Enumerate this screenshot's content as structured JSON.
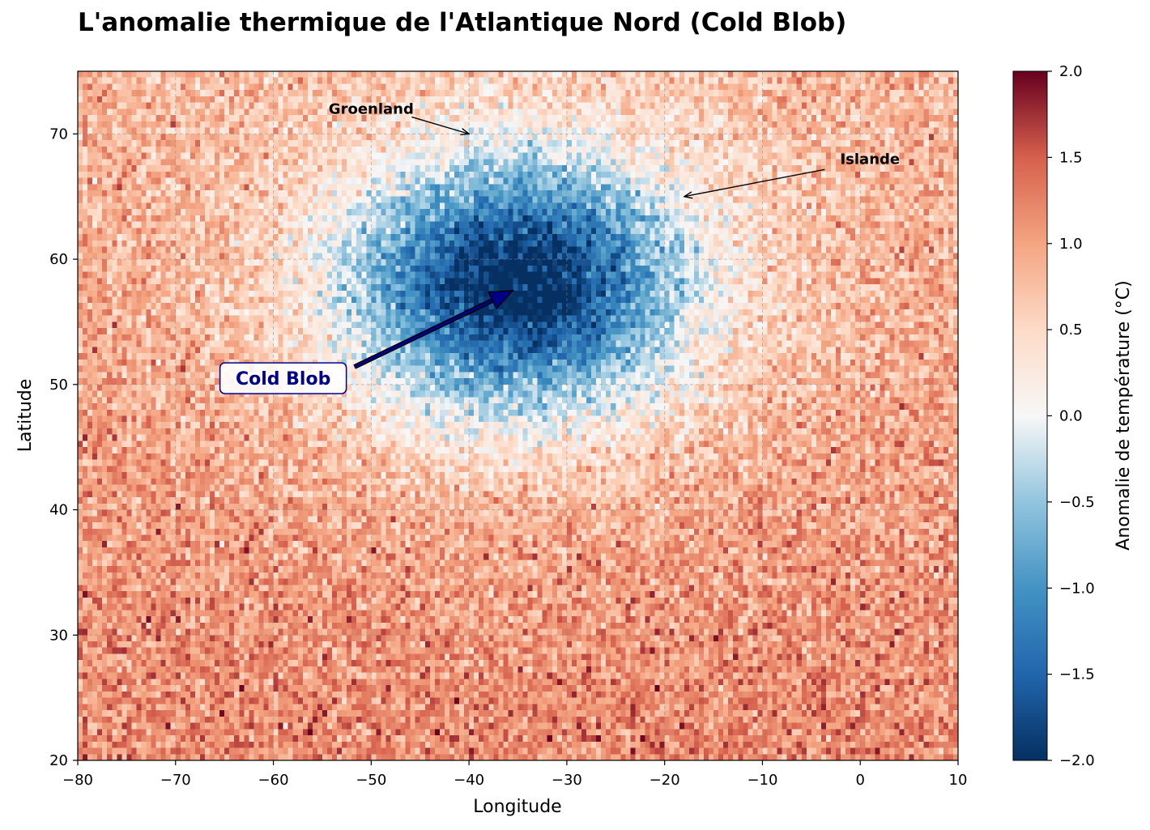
{
  "chart_data": {
    "type": "heatmap",
    "title": "L'anomalie thermique de l'Atlantique Nord (Cold Blob)",
    "xlabel": "Longitude",
    "ylabel": "Latitude",
    "xlim": [
      -80,
      10
    ],
    "ylim": [
      20,
      75
    ],
    "xticks": [
      -80,
      -70,
      -60,
      -50,
      -40,
      -30,
      -20,
      -10,
      0,
      10
    ],
    "yticks": [
      20,
      30,
      40,
      50,
      60,
      70
    ],
    "grid": true,
    "grid_resolution_deg": 0.5,
    "colormap": "RdBu_r",
    "colors": {
      "cold_extreme": "#053061",
      "cold": "#2166ac",
      "cool": "#92c5de",
      "neutral": "#f7f7f7",
      "warm": "#f4a582",
      "hot": "#d6604d",
      "hot_extreme": "#67001f"
    },
    "field_model": {
      "background_anomaly_c": 1.0,
      "background_gradient": "warmer toward lower latitudes",
      "noise_amplitude_c": 0.3,
      "cold_anomaly_center": {
        "lon": -35,
        "lat": 58
      },
      "cold_anomaly_peak_c": -2.0,
      "cold_anomaly_lon_radius_deg": 11,
      "cold_anomaly_lat_radius_deg": 6.5
    },
    "colorbar": {
      "label": "Anomalie de température (°C)",
      "min": -2.0,
      "max": 2.0,
      "ticks": [
        "2.0",
        "1.5",
        "1.0",
        "0.5",
        "0.0",
        "−0.5",
        "−1.0",
        "−1.5",
        "−2.0"
      ]
    },
    "annotations": [
      {
        "id": "cold-blob",
        "text": "Cold Blob",
        "text_lon": -59,
        "text_lat": 50.5,
        "arrow_to_lon": -35.5,
        "arrow_to_lat": 57.5,
        "color": "#00008b",
        "boxed": true
      },
      {
        "id": "greenland",
        "text": "Groenland",
        "text_lon": -50,
        "text_lat": 72,
        "arrow_to_lon": -40,
        "arrow_to_lat": 70,
        "color": "#000000",
        "boxed": false
      },
      {
        "id": "iceland",
        "text": "Islande",
        "text_lon": 1,
        "text_lat": 68,
        "arrow_to_lon": -18,
        "arrow_to_lat": 65,
        "color": "#000000",
        "boxed": false
      }
    ]
  }
}
